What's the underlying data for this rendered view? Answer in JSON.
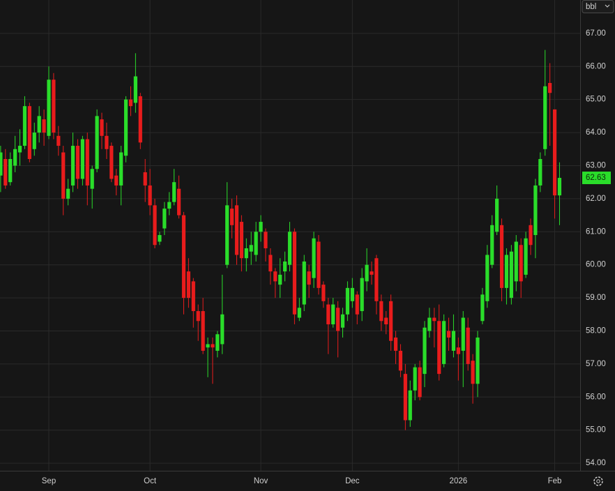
{
  "chart_data": {
    "type": "candlestick",
    "unit": "bbl",
    "categories": [
      null,
      null,
      null,
      null,
      null,
      null,
      null,
      null,
      null,
      null,
      "Sep",
      null,
      null,
      null,
      null,
      null,
      null,
      null,
      null,
      null,
      null,
      null,
      null,
      null,
      null,
      null,
      null,
      null,
      null,
      null,
      null,
      "Oct",
      null,
      null,
      null,
      null,
      null,
      null,
      null,
      null,
      null,
      null,
      null,
      null,
      null,
      null,
      null,
      null,
      null,
      null,
      null,
      null,
      null,
      null,
      "Nov",
      null,
      null,
      null,
      null,
      null,
      null,
      null,
      null,
      null,
      null,
      null,
      null,
      null,
      null,
      null,
      null,
      null,
      null,
      "Dec",
      null,
      null,
      null,
      null,
      null,
      null,
      null,
      null,
      null,
      null,
      null,
      null,
      null,
      null,
      null,
      null,
      null,
      null,
      null,
      null,
      null,
      "2026",
      null,
      null,
      null,
      null,
      null,
      null,
      null,
      null,
      null,
      null,
      null,
      null,
      null,
      null,
      null,
      null,
      null,
      null,
      null,
      "Feb",
      null
    ],
    "open": [
      62.7,
      63.2,
      62.5,
      63.0,
      63.4,
      63.6,
      64.8,
      63.5,
      64.0,
      64.4,
      63.9,
      65.6,
      63.9,
      63.4,
      62.0,
      62.4,
      63.6,
      62.6,
      63.8,
      62.3,
      62.9,
      64.4,
      63.9,
      63.6,
      62.7,
      62.4,
      63.3,
      65.0,
      64.9,
      65.1,
      62.8,
      62.4,
      61.8,
      60.7,
      61.1,
      61.7,
      61.9,
      62.3,
      61.5,
      59.8,
      59.5,
      58.6,
      58.6,
      57.5,
      57.6,
      57.4,
      57.6,
      60.0,
      61.7,
      61.8,
      61.3,
      60.2,
      60.4,
      60.3,
      61.0,
      61.0,
      60.3,
      59.8,
      59.4,
      59.8,
      60.0,
      61.0,
      58.4,
      58.8,
      59.8,
      59.6,
      60.7,
      59.4,
      58.8,
      58.2,
      58.7,
      58.1,
      58.5,
      58.9,
      59.1,
      58.6,
      59.5,
      59.8,
      60.2,
      58.9,
      58.4,
      58.9,
      57.8,
      57.4,
      56.7,
      55.3,
      56.2,
      56.9,
      56.7,
      58.0,
      58.4,
      58.3,
      57.0,
      58.0,
      57.4,
      57.5,
      57.4,
      58.1,
      57.1,
      56.4,
      58.3,
      58.9,
      60.0,
      61.0,
      61.2,
      59.3,
      59.0,
      59.5,
      60.6,
      59.7,
      61.2,
      60.9,
      62.4,
      63.5,
      65.5,
      64.7,
      62.1
    ],
    "high": [
      63.6,
      63.5,
      63.4,
      63.9,
      64.1,
      65.1,
      64.9,
      64.3,
      64.8,
      64.7,
      66.0,
      65.8,
      64.2,
      63.6,
      62.6,
      64.0,
      63.8,
      63.9,
      64.0,
      63.0,
      64.7,
      64.6,
      64.3,
      63.7,
      62.9,
      63.6,
      65.1,
      65.4,
      66.4,
      65.2,
      63.2,
      62.9,
      62.0,
      61.0,
      61.9,
      62.2,
      62.9,
      62.7,
      61.6,
      60.2,
      59.6,
      58.8,
      59.0,
      57.8,
      57.8,
      58.0,
      59.7,
      62.5,
      62.0,
      62.1,
      61.5,
      60.8,
      61.0,
      61.3,
      61.5,
      61.1,
      60.5,
      59.9,
      60.2,
      60.4,
      61.3,
      61.1,
      59.0,
      60.3,
      60.0,
      61.0,
      60.9,
      59.5,
      59.0,
      59.0,
      58.9,
      58.7,
      59.5,
      59.6,
      59.2,
      59.9,
      60.5,
      60.1,
      60.3,
      59.1,
      58.6,
      59.1,
      58.0,
      57.6,
      57.0,
      56.5,
      57.0,
      57.1,
      58.3,
      58.7,
      58.7,
      58.8,
      58.5,
      58.4,
      58.5,
      57.8,
      58.6,
      58.4,
      57.3,
      58.0,
      59.3,
      60.6,
      61.5,
      62.4,
      61.4,
      60.5,
      60.6,
      60.9,
      60.8,
      61.0,
      61.4,
      62.6,
      63.4,
      66.5,
      66.1,
      64.7,
      63.1
    ],
    "low": [
      62.2,
      62.3,
      62.4,
      62.8,
      63.0,
      63.5,
      63.1,
      63.3,
      63.7,
      63.6,
      63.8,
      63.8,
      63.3,
      61.5,
      61.8,
      62.2,
      62.3,
      62.4,
      61.8,
      61.7,
      62.8,
      63.5,
      63.2,
      62.5,
      62.1,
      61.8,
      63.1,
      64.5,
      64.6,
      63.5,
      61.9,
      61.5,
      60.5,
      60.6,
      60.9,
      61.5,
      61.8,
      61.4,
      58.5,
      58.7,
      58.1,
      57.7,
      57.3,
      56.6,
      56.4,
      57.2,
      57.3,
      59.9,
      60.8,
      60.0,
      59.8,
      59.8,
      60.0,
      60.1,
      60.7,
      60.1,
      59.4,
      59.0,
      59.0,
      59.5,
      59.8,
      58.2,
      58.3,
      58.6,
      59.0,
      59.3,
      59.1,
      58.7,
      57.3,
      58.1,
      57.2,
      57.8,
      58.3,
      58.7,
      58.2,
      58.3,
      59.2,
      59.4,
      58.5,
      58.0,
      57.9,
      57.4,
      57.0,
      56.6,
      55.0,
      55.1,
      55.9,
      55.9,
      56.3,
      57.8,
      57.5,
      56.5,
      56.9,
      57.4,
      57.2,
      56.5,
      56.3,
      56.8,
      55.8,
      56.0,
      58.2,
      58.7,
      59.9,
      60.9,
      58.9,
      58.8,
      58.8,
      59.2,
      59.0,
      59.6,
      60.3,
      60.2,
      62.2,
      63.3,
      63.6,
      61.4,
      61.2
    ],
    "close": [
      63.4,
      62.4,
      63.2,
      63.5,
      63.6,
      64.8,
      63.2,
      64.0,
      64.5,
      64.0,
      65.6,
      64.0,
      63.6,
      62.0,
      62.3,
      63.6,
      62.6,
      63.8,
      62.4,
      62.9,
      64.5,
      63.9,
      63.5,
      62.6,
      62.4,
      63.4,
      65.0,
      64.8,
      65.7,
      63.7,
      62.4,
      61.8,
      60.6,
      60.9,
      61.7,
      61.9,
      62.5,
      61.5,
      59.0,
      59.0,
      58.6,
      58.3,
      57.4,
      57.6,
      57.5,
      57.9,
      58.5,
      61.8,
      61.2,
      60.3,
      60.2,
      60.5,
      60.6,
      61.0,
      61.3,
      60.5,
      59.8,
      59.5,
      59.7,
      60.1,
      61.0,
      58.5,
      58.7,
      60.1,
      59.4,
      60.8,
      59.3,
      58.9,
      58.2,
      58.8,
      58.0,
      58.5,
      59.3,
      59.3,
      58.5,
      59.6,
      60.0,
      59.7,
      58.9,
      58.3,
      58.2,
      57.7,
      57.4,
      56.8,
      55.3,
      56.2,
      56.9,
      56.0,
      58.1,
      58.4,
      58.3,
      56.7,
      58.3,
      57.8,
      58.0,
      57.3,
      58.4,
      57.0,
      56.4,
      57.8,
      59.1,
      60.3,
      61.2,
      62.0,
      59.3,
      60.3,
      60.4,
      60.7,
      59.5,
      60.8,
      60.6,
      62.4,
      63.2,
      65.4,
      65.2,
      62.1,
      62.63
    ],
    "up_color": "#2add2a",
    "down_color": "#e81c1c",
    "last_price": 62.63,
    "ylim": [
      53.77,
      68.01
    ],
    "yticks": [
      {
        "value": 54,
        "label": "54.00"
      },
      {
        "value": 55,
        "label": "55.00"
      },
      {
        "value": 56,
        "label": "56.00"
      },
      {
        "value": 57,
        "label": "57.00"
      },
      {
        "value": 58,
        "label": "58.00"
      },
      {
        "value": 59,
        "label": "59.00"
      },
      {
        "value": 60,
        "label": "60.00"
      },
      {
        "value": 61,
        "label": "61.00"
      },
      {
        "value": 62,
        "label": "62.00"
      },
      {
        "value": 63,
        "label": "63.00"
      },
      {
        "value": 64,
        "label": "64.00"
      },
      {
        "value": 65,
        "label": "65.00"
      },
      {
        "value": 66,
        "label": "66.00"
      },
      {
        "value": 67,
        "label": "67.00"
      }
    ],
    "grid": true
  }
}
